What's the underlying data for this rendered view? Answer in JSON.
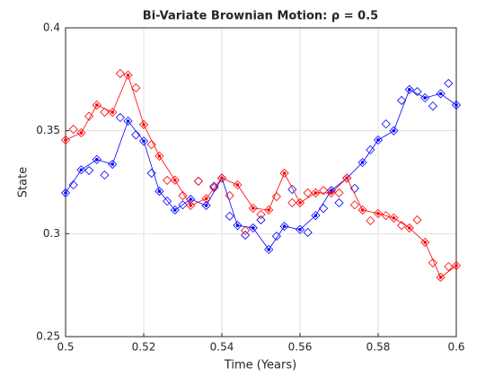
{
  "chart_data": {
    "type": "line",
    "title": "Bi-Variate Brownian Motion: ρ = 0.5",
    "xlabel": "Time (Years)",
    "ylabel": "State",
    "xlim": [
      0.5,
      0.6
    ],
    "xticks": [
      0.5,
      0.52,
      0.54,
      0.56,
      0.58,
      0.6
    ],
    "ylim": [
      0.25,
      0.4
    ],
    "yticks": [
      0.25,
      0.3,
      0.35,
      0.4
    ],
    "grid": true,
    "series": [
      {
        "color": "#0000ff",
        "marker": "diamond",
        "x": [
          0.5,
          0.502,
          0.504,
          0.506,
          0.508,
          0.51,
          0.512,
          0.514,
          0.516,
          0.518,
          0.52,
          0.522,
          0.524,
          0.526,
          0.528,
          0.53,
          0.532,
          0.534,
          0.536,
          0.538,
          0.54,
          0.542,
          0.544,
          0.546,
          0.548,
          0.55,
          0.552,
          0.554,
          0.556,
          0.558,
          0.56,
          0.562,
          0.564,
          0.566,
          0.568,
          0.57,
          0.572,
          0.574,
          0.576,
          0.578,
          0.58,
          0.582,
          0.584,
          0.586,
          0.588,
          0.59,
          0.592,
          0.594,
          0.596,
          0.598,
          0.6
        ],
        "values": [
          0.3198,
          0.3237,
          0.331,
          0.3307,
          0.336,
          0.3285,
          0.3337,
          0.3564,
          0.3547,
          0.348,
          0.345,
          0.3294,
          0.3206,
          0.3158,
          0.3115,
          0.314,
          0.3167,
          0.3255,
          0.3137,
          0.323,
          0.327,
          0.3085,
          0.304,
          0.2993,
          0.3028,
          0.3067,
          0.2923,
          0.2988,
          0.3036,
          0.3215,
          0.302,
          0.3006,
          0.3088,
          0.3123,
          0.321,
          0.315,
          0.327,
          0.322,
          0.3346,
          0.3407,
          0.3455,
          0.3533,
          0.35,
          0.3647,
          0.37,
          0.369,
          0.366,
          0.362,
          0.368,
          0.373,
          0.3625
        ]
      },
      {
        "color": "#ff0000",
        "marker": "diamond",
        "x": [
          0.5,
          0.502,
          0.504,
          0.506,
          0.508,
          0.51,
          0.512,
          0.514,
          0.516,
          0.518,
          0.52,
          0.522,
          0.524,
          0.526,
          0.528,
          0.53,
          0.532,
          0.534,
          0.536,
          0.538,
          0.54,
          0.542,
          0.544,
          0.546,
          0.548,
          0.55,
          0.552,
          0.554,
          0.556,
          0.558,
          0.56,
          0.562,
          0.564,
          0.566,
          0.568,
          0.57,
          0.572,
          0.574,
          0.576,
          0.578,
          0.58,
          0.582,
          0.584,
          0.586,
          0.588,
          0.59,
          0.592,
          0.594,
          0.596,
          0.598,
          0.6
        ],
        "values": [
          0.3455,
          0.3507,
          0.349,
          0.357,
          0.3625,
          0.359,
          0.359,
          0.3778,
          0.377,
          0.3708,
          0.353,
          0.3433,
          0.3377,
          0.3259,
          0.326,
          0.3185,
          0.3137,
          0.3255,
          0.317,
          0.3223,
          0.327,
          0.3185,
          0.3237,
          0.3015,
          0.3124,
          0.3093,
          0.3115,
          0.318,
          0.3294,
          0.315,
          0.315,
          0.3198,
          0.3198,
          0.321,
          0.3198,
          0.3198,
          0.327,
          0.314,
          0.3115,
          0.3063,
          0.3098,
          0.3088,
          0.3076,
          0.304,
          0.3028,
          0.3067,
          0.2958,
          0.2858,
          0.2788,
          0.284,
          0.2845
        ]
      },
      {
        "color": "#0000ff",
        "marker": "dot-line",
        "x": [
          0.5,
          0.504,
          0.508,
          0.512,
          0.516,
          0.52,
          0.524,
          0.528,
          0.532,
          0.536,
          0.54,
          0.544,
          0.548,
          0.552,
          0.556,
          0.56,
          0.564,
          0.568,
          0.572,
          0.576,
          0.58,
          0.584,
          0.588,
          0.592,
          0.596,
          0.6
        ],
        "values": [
          0.3198,
          0.331,
          0.336,
          0.3337,
          0.3547,
          0.345,
          0.3206,
          0.3115,
          0.3167,
          0.3137,
          0.327,
          0.304,
          0.3028,
          0.2923,
          0.3036,
          0.302,
          0.3088,
          0.321,
          0.327,
          0.3346,
          0.3455,
          0.35,
          0.37,
          0.366,
          0.368,
          0.3625
        ]
      },
      {
        "color": "#ff0000",
        "marker": "dot-line",
        "x": [
          0.5,
          0.504,
          0.508,
          0.512,
          0.516,
          0.52,
          0.524,
          0.528,
          0.532,
          0.536,
          0.54,
          0.544,
          0.548,
          0.552,
          0.556,
          0.56,
          0.564,
          0.568,
          0.572,
          0.576,
          0.58,
          0.584,
          0.588,
          0.592,
          0.596,
          0.6
        ],
        "values": [
          0.3455,
          0.349,
          0.3625,
          0.359,
          0.377,
          0.353,
          0.3377,
          0.326,
          0.3137,
          0.317,
          0.327,
          0.3237,
          0.3124,
          0.3115,
          0.3294,
          0.315,
          0.3198,
          0.3198,
          0.327,
          0.3115,
          0.3098,
          0.3076,
          0.3028,
          0.2958,
          0.2788,
          0.2845
        ]
      }
    ]
  }
}
